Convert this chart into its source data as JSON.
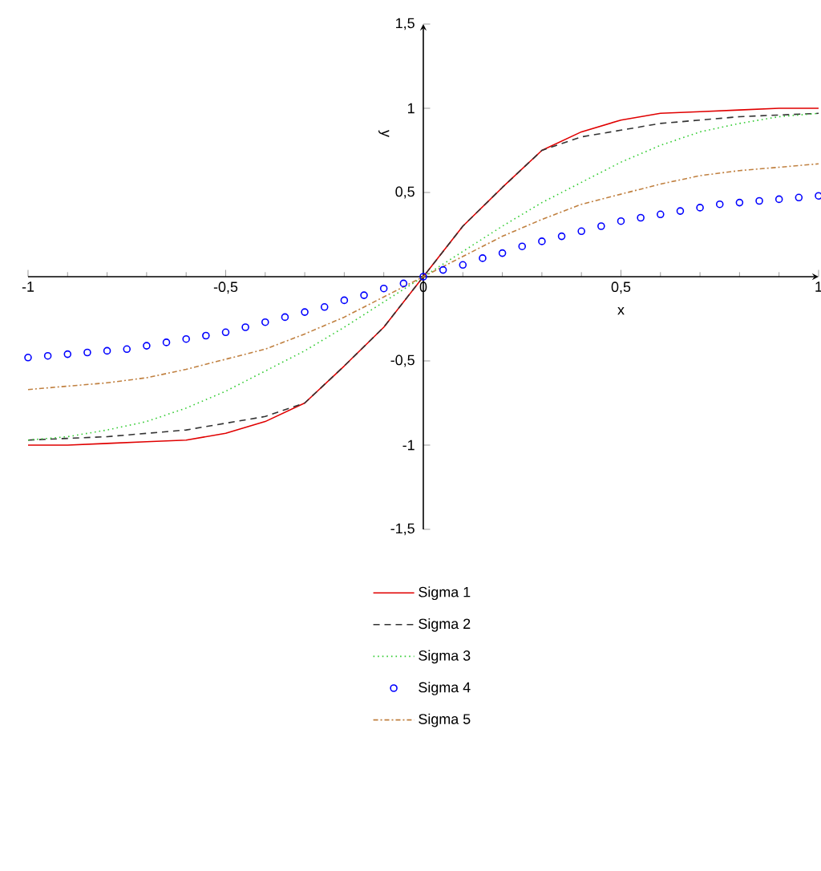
{
  "chart_data": {
    "type": "line",
    "xlabel": "x",
    "ylabel": "y",
    "xlim": [
      -1,
      1
    ],
    "ylim": [
      -1.5,
      1.5
    ],
    "xticks": [
      {
        "value": -1,
        "label": "-1"
      },
      {
        "value": -0.5,
        "label": "-0,5"
      },
      {
        "value": 0,
        "label": "0"
      },
      {
        "value": 0.5,
        "label": "0,5"
      },
      {
        "value": 1,
        "label": "1"
      }
    ],
    "yticks": [
      {
        "value": -1.5,
        "label": "-1,5"
      },
      {
        "value": -1,
        "label": "-1"
      },
      {
        "value": -0.5,
        "label": "-0,5"
      },
      {
        "value": 0.5,
        "label": "0,5"
      },
      {
        "value": 1,
        "label": "1"
      },
      {
        "value": 1.5,
        "label": "1,5"
      }
    ],
    "x": [
      -1,
      -0.9,
      -0.8,
      -0.7,
      -0.6,
      -0.5,
      -0.4,
      -0.3,
      -0.2,
      -0.1,
      0,
      0.1,
      0.2,
      0.3,
      0.4,
      0.5,
      0.6,
      0.7,
      0.8,
      0.9,
      1
    ],
    "legend": "bottom",
    "grid": false,
    "series": [
      {
        "name": "Sigma 1",
        "color": "#e00000",
        "line_style": "solid",
        "values": [
          -1,
          -1,
          -0.99,
          -0.98,
          -0.97,
          -0.93,
          -0.86,
          -0.75,
          -0.53,
          -0.3,
          0,
          0.3,
          0.53,
          0.75,
          0.86,
          0.93,
          0.97,
          0.98,
          0.99,
          1,
          1
        ]
      },
      {
        "name": "Sigma 2",
        "color": "#333333",
        "line_style": "dashed",
        "values": [
          -0.97,
          -0.96,
          -0.95,
          -0.93,
          -0.91,
          -0.87,
          -0.83,
          -0.75,
          -0.53,
          -0.3,
          0,
          0.3,
          0.53,
          0.75,
          0.83,
          0.87,
          0.91,
          0.93,
          0.95,
          0.96,
          0.97
        ]
      },
      {
        "name": "Sigma 3",
        "color": "#33cc33",
        "line_style": "dotted",
        "values": [
          -0.97,
          -0.95,
          -0.91,
          -0.86,
          -0.78,
          -0.68,
          -0.56,
          -0.44,
          -0.3,
          -0.15,
          0,
          0.15,
          0.3,
          0.44,
          0.56,
          0.68,
          0.78,
          0.86,
          0.91,
          0.95,
          0.97
        ]
      },
      {
        "name": "Sigma 4",
        "color": "#0000ff",
        "type": "scatter",
        "marker": "circle",
        "x": [
          -1,
          -0.95,
          -0.9,
          -0.85,
          -0.8,
          -0.75,
          -0.7,
          -0.65,
          -0.6,
          -0.55,
          -0.5,
          -0.45,
          -0.4,
          -0.35,
          -0.3,
          -0.25,
          -0.2,
          -0.15,
          -0.1,
          -0.05,
          0,
          0.05,
          0.1,
          0.15,
          0.2,
          0.25,
          0.3,
          0.35,
          0.4,
          0.45,
          0.5,
          0.55,
          0.6,
          0.65,
          0.7,
          0.75,
          0.8,
          0.85,
          0.9,
          0.95,
          1
        ],
        "values": [
          -0.48,
          -0.47,
          -0.46,
          -0.45,
          -0.44,
          -0.43,
          -0.41,
          -0.39,
          -0.37,
          -0.35,
          -0.33,
          -0.3,
          -0.27,
          -0.24,
          -0.21,
          -0.18,
          -0.14,
          -0.11,
          -0.07,
          -0.04,
          0,
          0.04,
          0.07,
          0.11,
          0.14,
          0.18,
          0.21,
          0.24,
          0.27,
          0.3,
          0.33,
          0.35,
          0.37,
          0.39,
          0.41,
          0.43,
          0.44,
          0.45,
          0.46,
          0.47,
          0.48
        ]
      },
      {
        "name": "Sigma 5",
        "color": "#c08040",
        "line_style": "dashdot",
        "values": [
          -0.67,
          -0.65,
          -0.63,
          -0.6,
          -0.55,
          -0.49,
          -0.43,
          -0.34,
          -0.24,
          -0.12,
          0,
          0.12,
          0.24,
          0.34,
          0.43,
          0.49,
          0.55,
          0.6,
          0.63,
          0.65,
          0.67
        ]
      }
    ]
  }
}
